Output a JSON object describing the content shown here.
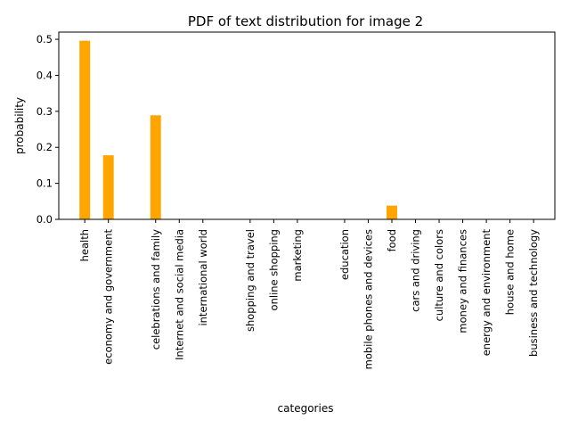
{
  "chart_data": {
    "type": "bar",
    "title": "PDF of text distribution for image 2",
    "xlabel": "categories",
    "ylabel": "probability",
    "ylim": [
      0,
      0.52
    ],
    "yticks": [
      0.0,
      0.1,
      0.2,
      0.3,
      0.4,
      0.5
    ],
    "ytick_labels": [
      "0.0",
      "0.1",
      "0.2",
      "0.3",
      "0.4",
      "0.5"
    ],
    "bar_color": "#ffa500",
    "x": [
      0,
      1,
      3,
      4,
      5,
      7,
      8,
      9,
      11,
      12,
      13,
      14,
      15,
      16,
      17,
      18,
      19
    ],
    "xlim": [
      -1.1,
      19.9
    ],
    "categories": [
      "health",
      "economy and government",
      "celebrations and family",
      "Internet and social media",
      "international world",
      "shopping and travel",
      "online shopping",
      "marketing",
      "education",
      "mobile phones and devices",
      "food",
      "cars and driving",
      "culture and colors",
      "money and finances",
      "energy and environment",
      "house and home",
      "business and technology"
    ],
    "values": [
      0.496,
      0.178,
      0.289,
      0,
      0,
      0,
      0,
      0,
      0,
      0,
      0.038,
      0,
      0,
      0,
      0,
      0,
      0
    ],
    "bar_width": 0.45,
    "grid": false,
    "legend": "none"
  }
}
